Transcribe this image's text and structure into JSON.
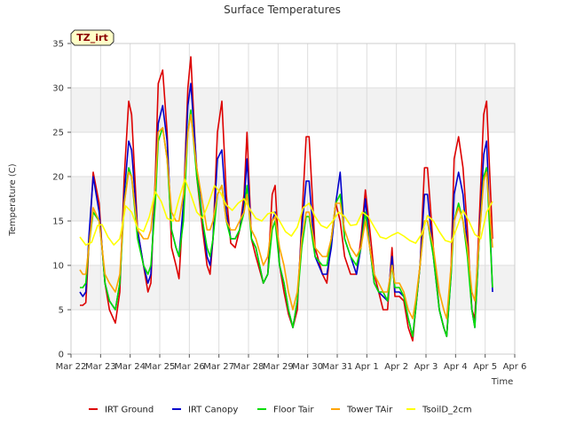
{
  "chart_data": {
    "type": "line",
    "title": "Surface Temperatures",
    "xlabel": "Time",
    "ylabel": "Temperature (C)",
    "tag": "TZ_irt",
    "ylim": [
      0,
      35
    ],
    "yticks": [
      0,
      5,
      10,
      15,
      20,
      25,
      30,
      35
    ],
    "xlim": [
      0,
      15
    ],
    "xticks": [
      {
        "pos": 0,
        "label": "Mar 22"
      },
      {
        "pos": 1,
        "label": "Mar 23"
      },
      {
        "pos": 2,
        "label": "Mar 24"
      },
      {
        "pos": 3,
        "label": "Mar 25"
      },
      {
        "pos": 4,
        "label": "Mar 26"
      },
      {
        "pos": 5,
        "label": "Mar 27"
      },
      {
        "pos": 6,
        "label": "Mar 28"
      },
      {
        "pos": 7,
        "label": "Mar 29"
      },
      {
        "pos": 8,
        "label": "Mar 30"
      },
      {
        "pos": 9,
        "label": "Mar 31"
      },
      {
        "pos": 10,
        "label": "Apr 1"
      },
      {
        "pos": 11,
        "label": "Apr 2"
      },
      {
        "pos": 12,
        "label": "Apr 3"
      },
      {
        "pos": 13,
        "label": "Apr 4"
      },
      {
        "pos": 14,
        "label": "Apr 5"
      },
      {
        "pos": 15,
        "label": "Apr 6"
      }
    ],
    "grid": true,
    "legend_position": "bottom",
    "series": [
      {
        "name": "IRT Ground",
        "color": "#dd0000",
        "x": [
          0.3,
          0.4,
          0.5,
          0.6,
          0.75,
          0.95,
          1.05,
          1.15,
          1.3,
          1.5,
          1.65,
          1.8,
          1.95,
          2.05,
          2.25,
          2.45,
          2.6,
          2.7,
          2.85,
          2.95,
          3.1,
          3.25,
          3.4,
          3.55,
          3.65,
          3.8,
          3.95,
          4.05,
          4.25,
          4.45,
          4.6,
          4.7,
          4.8,
          4.95,
          5.1,
          5.25,
          5.4,
          5.55,
          5.7,
          5.85,
          5.95,
          6.1,
          6.25,
          6.5,
          6.65,
          6.8,
          6.9,
          7.05,
          7.2,
          7.35,
          7.5,
          7.65,
          7.8,
          7.95,
          8.05,
          8.25,
          8.5,
          8.65,
          8.8,
          8.95,
          9.1,
          9.25,
          9.45,
          9.65,
          9.8,
          9.95,
          10.1,
          10.25,
          10.4,
          10.55,
          10.7,
          10.85,
          10.95,
          11.1,
          11.25,
          11.4,
          11.55,
          11.65,
          11.8,
          11.95,
          12.05,
          12.25,
          12.45,
          12.6,
          12.7,
          12.85,
          12.95,
          13.1,
          13.25,
          13.4,
          13.55,
          13.65,
          13.8,
          13.95,
          14.05,
          14.25
        ],
        "y": [
          5.5,
          5.5,
          5.8,
          12,
          20.5,
          17,
          12,
          8,
          5,
          3.5,
          7,
          20,
          28.5,
          27,
          14,
          10,
          7,
          8,
          20,
          30.5,
          32,
          25,
          12,
          10,
          8.5,
          17,
          30,
          33.5,
          20,
          14,
          10,
          9,
          13,
          25,
          28.5,
          18,
          12.5,
          12,
          14,
          18,
          25,
          13,
          11,
          8,
          9,
          18,
          19,
          10,
          7,
          4.5,
          3,
          5,
          15,
          24.5,
          24.5,
          12,
          9,
          8,
          13,
          17,
          15,
          11,
          9,
          9,
          13,
          18.5,
          14,
          9,
          7,
          5,
          5,
          12,
          6.5,
          6.5,
          6,
          3,
          1.5,
          5,
          10,
          21,
          21,
          12,
          5,
          3,
          2,
          10,
          22,
          24.5,
          21,
          14,
          5,
          4,
          15,
          27,
          28.5,
          13
        ]
      },
      {
        "name": "IRT Canopy",
        "color": "#0000cc",
        "x": [
          0.3,
          0.4,
          0.5,
          0.6,
          0.75,
          0.95,
          1.05,
          1.15,
          1.3,
          1.5,
          1.65,
          1.8,
          1.95,
          2.05,
          2.25,
          2.45,
          2.6,
          2.7,
          2.85,
          2.95,
          3.1,
          3.25,
          3.4,
          3.55,
          3.65,
          3.8,
          3.95,
          4.05,
          4.25,
          4.45,
          4.6,
          4.7,
          4.8,
          4.95,
          5.1,
          5.25,
          5.4,
          5.55,
          5.7,
          5.85,
          5.95,
          6.1,
          6.25,
          6.5,
          6.65,
          6.8,
          6.9,
          7.05,
          7.2,
          7.35,
          7.5,
          7.65,
          7.8,
          7.95,
          8.05,
          8.25,
          8.5,
          8.65,
          8.8,
          8.95,
          9.1,
          9.25,
          9.45,
          9.65,
          9.8,
          9.95,
          10.1,
          10.25,
          10.4,
          10.55,
          10.7,
          10.85,
          10.95,
          11.1,
          11.25,
          11.4,
          11.55,
          11.65,
          11.8,
          11.95,
          12.05,
          12.25,
          12.45,
          12.6,
          12.7,
          12.85,
          12.95,
          13.1,
          13.25,
          13.4,
          13.55,
          13.65,
          13.8,
          13.95,
          14.05,
          14.25
        ],
        "y": [
          7,
          6.5,
          7,
          13,
          20,
          16,
          12,
          8,
          6,
          5,
          8,
          18,
          24,
          23,
          14,
          10,
          8,
          9,
          19,
          26,
          28,
          24,
          14,
          12,
          11,
          17,
          28,
          30.5,
          21,
          15,
          11,
          10,
          13,
          22,
          23,
          16,
          13,
          13,
          14,
          17,
          22,
          13,
          12,
          8,
          9,
          15,
          16,
          10,
          8,
          5,
          3,
          6,
          14,
          19.5,
          19.5,
          11,
          9,
          9,
          12,
          17,
          20.5,
          13,
          11,
          9,
          12,
          17.5,
          12,
          8,
          7,
          6.5,
          6,
          11,
          7,
          7,
          6.5,
          4,
          2,
          5,
          10,
          18,
          18,
          11,
          5,
          3,
          2,
          9,
          18,
          20.5,
          18,
          12,
          5,
          3,
          13,
          22.5,
          24,
          7
        ]
      },
      {
        "name": "Floor Tair",
        "color": "#00dd00",
        "x": [
          0.3,
          0.4,
          0.5,
          0.6,
          0.75,
          0.95,
          1.05,
          1.15,
          1.3,
          1.5,
          1.65,
          1.8,
          1.95,
          2.05,
          2.25,
          2.45,
          2.6,
          2.7,
          2.85,
          2.95,
          3.1,
          3.25,
          3.4,
          3.55,
          3.65,
          3.8,
          3.95,
          4.05,
          4.25,
          4.45,
          4.6,
          4.7,
          4.8,
          4.95,
          5.1,
          5.25,
          5.4,
          5.55,
          5.7,
          5.85,
          5.95,
          6.1,
          6.25,
          6.5,
          6.65,
          6.8,
          6.9,
          7.05,
          7.2,
          7.35,
          7.5,
          7.65,
          7.8,
          7.95,
          8.05,
          8.25,
          8.5,
          8.65,
          8.8,
          8.95,
          9.1,
          9.25,
          9.45,
          9.65,
          9.8,
          9.95,
          10.1,
          10.25,
          10.4,
          10.55,
          10.7,
          10.85,
          10.95,
          11.1,
          11.25,
          11.4,
          11.55,
          11.65,
          11.8,
          11.95,
          12.05,
          12.25,
          12.45,
          12.6,
          12.7,
          12.85,
          12.95,
          13.1,
          13.25,
          13.4,
          13.55,
          13.65,
          13.8,
          13.95,
          14.05,
          14.25
        ],
        "y": [
          7.5,
          7.5,
          8,
          12,
          16,
          15,
          12,
          8,
          6,
          5,
          8,
          17,
          21,
          20,
          13,
          10,
          9,
          10,
          17,
          24,
          25.5,
          22,
          14,
          12,
          11,
          15,
          25,
          27.5,
          20,
          15,
          12,
          11,
          13,
          18,
          19,
          15,
          13,
          13,
          14,
          16,
          19,
          13,
          12,
          8,
          9,
          14,
          15,
          10,
          8,
          5,
          3,
          6,
          12,
          15.5,
          15.5,
          11,
          10,
          10,
          13,
          17,
          18,
          13,
          11,
          10,
          12,
          16,
          12,
          8,
          7,
          7,
          6,
          10,
          7.5,
          7.5,
          6.5,
          4,
          2,
          5,
          10,
          15,
          15,
          11,
          5,
          3,
          2,
          9,
          15,
          17,
          15,
          11,
          5,
          3,
          13,
          20,
          21,
          7.5
        ]
      },
      {
        "name": "Tower TAir",
        "color": "#ffa500",
        "x": [
          0.3,
          0.4,
          0.5,
          0.6,
          0.75,
          0.95,
          1.05,
          1.15,
          1.3,
          1.5,
          1.65,
          1.8,
          1.95,
          2.05,
          2.25,
          2.45,
          2.6,
          2.7,
          2.85,
          2.95,
          3.1,
          3.25,
          3.4,
          3.55,
          3.65,
          3.8,
          3.95,
          4.05,
          4.25,
          4.45,
          4.6,
          4.7,
          4.8,
          4.95,
          5.1,
          5.25,
          5.4,
          5.55,
          5.7,
          5.85,
          5.95,
          6.1,
          6.25,
          6.5,
          6.65,
          6.8,
          6.9,
          7.05,
          7.2,
          7.35,
          7.5,
          7.65,
          7.8,
          7.95,
          8.05,
          8.25,
          8.5,
          8.65,
          8.8,
          8.95,
          9.1,
          9.25,
          9.45,
          9.65,
          9.8,
          9.95,
          10.1,
          10.25,
          10.4,
          10.55,
          10.7,
          10.85,
          10.95,
          11.1,
          11.25,
          11.4,
          11.55,
          11.65,
          11.8,
          11.95,
          12.05,
          12.25,
          12.45,
          12.6,
          12.7,
          12.85,
          12.95,
          13.1,
          13.25,
          13.4,
          13.55,
          13.65,
          13.8,
          13.95,
          14.05,
          14.25
        ],
        "y": [
          9.5,
          9,
          9,
          12,
          16.5,
          15,
          12,
          9,
          8,
          7,
          9,
          17,
          20.5,
          20,
          14,
          13,
          13,
          14,
          19,
          25,
          25.5,
          22,
          16,
          15,
          15,
          18,
          25,
          27,
          21,
          17,
          14,
          14,
          15,
          18,
          19,
          15,
          14,
          14,
          15,
          16,
          18,
          14,
          13,
          10,
          11,
          15,
          15.5,
          12,
          10,
          7,
          5,
          7,
          13,
          16,
          16,
          12,
          11,
          11,
          13,
          17,
          17,
          14,
          12,
          11,
          12,
          15,
          12,
          9,
          8,
          7,
          7,
          10,
          8,
          8,
          7,
          5,
          4,
          6,
          10,
          15,
          15,
          12,
          7,
          5,
          4,
          10,
          15,
          16.5,
          15,
          12,
          7,
          6,
          13,
          19.5,
          20.5,
          12
        ]
      },
      {
        "name": "TsoilD_2cm",
        "color": "#ffff00",
        "x": [
          0.3,
          0.5,
          0.7,
          0.9,
          1.05,
          1.25,
          1.45,
          1.65,
          1.85,
          2.05,
          2.25,
          2.45,
          2.65,
          2.85,
          3.05,
          3.25,
          3.45,
          3.65,
          3.85,
          4.05,
          4.25,
          4.45,
          4.65,
          4.85,
          5.05,
          5.25,
          5.45,
          5.65,
          5.85,
          6.05,
          6.25,
          6.45,
          6.65,
          6.85,
          7.05,
          7.25,
          7.45,
          7.65,
          7.85,
          8.05,
          8.25,
          8.45,
          8.65,
          8.85,
          9.05,
          9.25,
          9.45,
          9.65,
          9.85,
          10.05,
          10.25,
          10.45,
          10.65,
          10.85,
          11.05,
          11.25,
          11.45,
          11.65,
          11.85,
          12.05,
          12.25,
          12.45,
          12.65,
          12.85,
          13.05,
          13.25,
          13.45,
          13.65,
          13.85,
          14.05,
          14.25
        ],
        "y": [
          13.2,
          12.3,
          12.6,
          14.5,
          14.6,
          13.2,
          12.3,
          13,
          16.7,
          16,
          14.2,
          13.8,
          15.5,
          18.3,
          17.2,
          15.3,
          15,
          17.5,
          19.7,
          18,
          16,
          15.3,
          17,
          19,
          18.2,
          16.8,
          16.2,
          17,
          17.5,
          16.3,
          15.3,
          15,
          15.8,
          16,
          15,
          13.8,
          13.3,
          14.3,
          16.5,
          17,
          15.5,
          14.5,
          14.2,
          15,
          16,
          15.5,
          14.5,
          14.6,
          16,
          15.5,
          14.3,
          13.2,
          13,
          13.4,
          13.7,
          13.3,
          12.8,
          12.5,
          13.5,
          15.6,
          15,
          13.8,
          12.8,
          12.6,
          14.3,
          16.2,
          15,
          13.5,
          13,
          16,
          17.2
        ]
      }
    ]
  }
}
